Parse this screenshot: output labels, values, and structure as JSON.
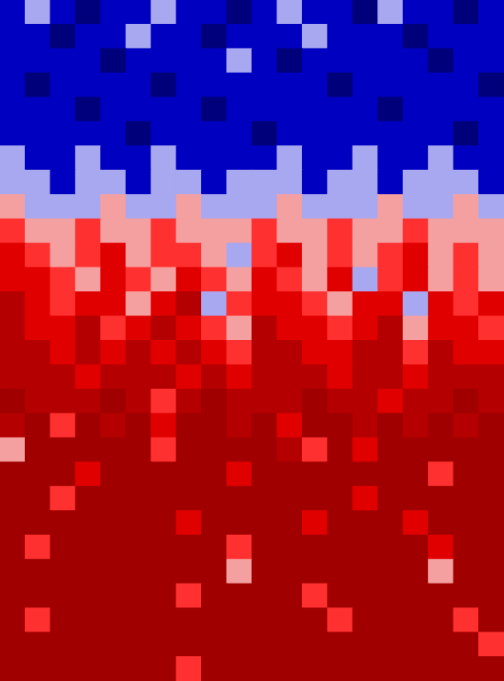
{
  "chart_data": {
    "type": "heatmap",
    "tick_labels": false,
    "grid": false,
    "xlim": [
      0,
      20
    ],
    "ylim": [
      0,
      28
    ],
    "zlim": [
      0,
      7
    ],
    "colors": [
      "#00007a",
      "#0000c0",
      "#a8a8f0",
      "#f4a0a0",
      "#ff3030",
      "#e00000",
      "#b40000",
      "#a00000"
    ],
    "cells": [
      [
        1,
        2,
        1,
        0,
        1,
        1,
        2,
        1,
        1,
        0,
        1,
        2,
        1,
        1,
        0,
        2,
        1,
        1,
        0,
        1
      ],
      [
        1,
        1,
        0,
        1,
        1,
        2,
        1,
        1,
        0,
        1,
        1,
        1,
        2,
        1,
        1,
        1,
        0,
        1,
        1,
        1
      ],
      [
        1,
        1,
        1,
        1,
        0,
        1,
        1,
        1,
        1,
        2,
        1,
        0,
        1,
        1,
        1,
        1,
        1,
        0,
        1,
        1
      ],
      [
        1,
        0,
        1,
        1,
        1,
        1,
        0,
        1,
        1,
        1,
        1,
        1,
        1,
        0,
        1,
        1,
        1,
        1,
        1,
        0
      ],
      [
        1,
        1,
        1,
        0,
        1,
        1,
        1,
        1,
        0,
        1,
        1,
        1,
        1,
        1,
        1,
        0,
        1,
        1,
        1,
        1
      ],
      [
        1,
        1,
        1,
        1,
        1,
        0,
        1,
        1,
        1,
        1,
        0,
        1,
        1,
        1,
        1,
        1,
        1,
        1,
        0,
        1
      ],
      [
        2,
        1,
        1,
        2,
        1,
        1,
        2,
        1,
        1,
        1,
        1,
        2,
        1,
        1,
        2,
        1,
        1,
        2,
        1,
        1
      ],
      [
        2,
        2,
        1,
        2,
        2,
        1,
        2,
        2,
        1,
        2,
        2,
        2,
        1,
        2,
        2,
        1,
        2,
        2,
        2,
        1
      ],
      [
        3,
        2,
        2,
        2,
        3,
        2,
        2,
        3,
        2,
        2,
        2,
        3,
        2,
        2,
        2,
        3,
        2,
        2,
        3,
        2
      ],
      [
        4,
        3,
        3,
        4,
        3,
        3,
        4,
        3,
        3,
        3,
        4,
        3,
        3,
        4,
        3,
        3,
        4,
        3,
        3,
        3
      ],
      [
        5,
        4,
        3,
        4,
        5,
        3,
        4,
        4,
        3,
        2,
        4,
        5,
        3,
        4,
        3,
        4,
        5,
        3,
        4,
        3
      ],
      [
        5,
        5,
        4,
        3,
        5,
        4,
        3,
        5,
        4,
        3,
        5,
        4,
        3,
        5,
        2,
        4,
        5,
        3,
        4,
        3
      ],
      [
        6,
        5,
        4,
        5,
        5,
        3,
        5,
        6,
        2,
        4,
        5,
        5,
        4,
        3,
        5,
        5,
        2,
        5,
        4,
        5
      ],
      [
        6,
        5,
        5,
        6,
        4,
        5,
        6,
        5,
        4,
        3,
        6,
        5,
        5,
        4,
        5,
        6,
        3,
        5,
        5,
        4
      ],
      [
        6,
        6,
        5,
        6,
        5,
        6,
        5,
        6,
        5,
        4,
        6,
        6,
        5,
        5,
        6,
        6,
        4,
        6,
        5,
        5
      ],
      [
        6,
        6,
        6,
        5,
        6,
        6,
        6,
        5,
        6,
        5,
        6,
        6,
        6,
        5,
        6,
        6,
        5,
        6,
        6,
        6
      ],
      [
        7,
        6,
        6,
        6,
        7,
        6,
        4,
        6,
        7,
        6,
        6,
        6,
        7,
        6,
        6,
        5,
        6,
        6,
        7,
        6
      ],
      [
        6,
        7,
        4,
        7,
        6,
        7,
        5,
        7,
        7,
        6,
        7,
        5,
        7,
        7,
        6,
        7,
        6,
        7,
        6,
        7
      ],
      [
        3,
        7,
        7,
        7,
        7,
        7,
        4,
        7,
        7,
        7,
        7,
        6,
        4,
        7,
        5,
        7,
        7,
        7,
        7,
        7
      ],
      [
        7,
        7,
        7,
        5,
        7,
        7,
        7,
        7,
        7,
        5,
        7,
        7,
        7,
        7,
        7,
        7,
        7,
        4,
        7,
        7
      ],
      [
        7,
        7,
        4,
        7,
        7,
        7,
        7,
        7,
        7,
        7,
        7,
        7,
        7,
        7,
        5,
        7,
        7,
        7,
        7,
        7
      ],
      [
        7,
        7,
        7,
        7,
        7,
        7,
        7,
        5,
        7,
        7,
        7,
        7,
        5,
        7,
        7,
        7,
        5,
        7,
        7,
        7
      ],
      [
        7,
        4,
        7,
        7,
        7,
        7,
        7,
        7,
        7,
        4,
        7,
        7,
        7,
        7,
        7,
        7,
        7,
        5,
        7,
        7
      ],
      [
        7,
        7,
        7,
        7,
        7,
        7,
        7,
        7,
        7,
        3,
        7,
        7,
        7,
        7,
        7,
        7,
        7,
        3,
        7,
        7
      ],
      [
        7,
        7,
        7,
        7,
        7,
        7,
        7,
        4,
        7,
        7,
        7,
        7,
        4,
        7,
        7,
        7,
        7,
        7,
        7,
        7
      ],
      [
        7,
        4,
        7,
        7,
        7,
        7,
        7,
        7,
        7,
        7,
        7,
        7,
        7,
        4,
        7,
        7,
        7,
        7,
        4,
        7
      ],
      [
        7,
        7,
        7,
        7,
        7,
        7,
        7,
        7,
        7,
        7,
        7,
        7,
        7,
        7,
        7,
        7,
        7,
        7,
        7,
        4
      ],
      [
        7,
        7,
        7,
        7,
        7,
        7,
        7,
        4,
        7,
        7,
        7,
        7,
        7,
        7,
        7,
        7,
        7,
        7,
        7,
        7
      ]
    ]
  }
}
